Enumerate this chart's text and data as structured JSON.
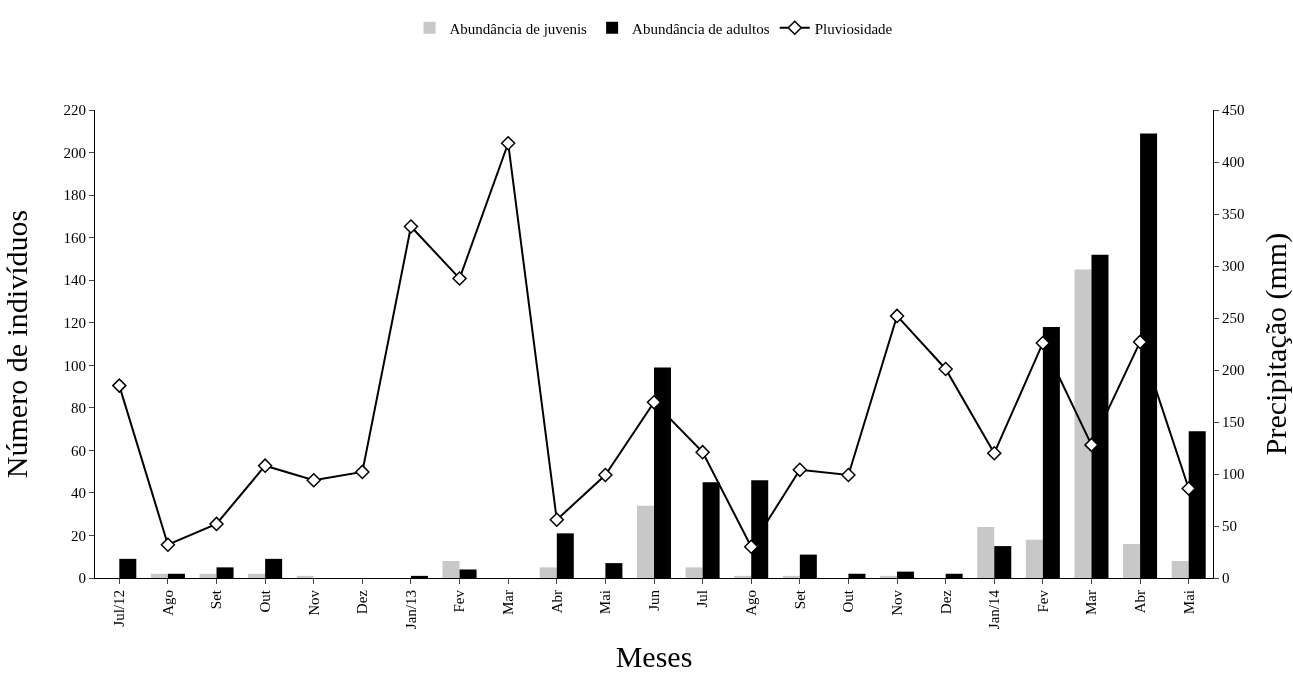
{
  "chart_data": {
    "type": "bar",
    "xlabel": "Meses",
    "ylabel": "Número de indivíduos",
    "y2label": "Precipitação (mm)",
    "categories": [
      "Jul/12",
      "Ago",
      "Set",
      "Out",
      "Nov",
      "Dez",
      "Jan/13",
      "Fev",
      "Mar",
      "Abr",
      "Mai",
      "Jun",
      "Jul",
      "Ago",
      "Set",
      "Out",
      "Nov",
      "Dez",
      "Jan/14",
      "Fev",
      "Mar",
      "Abr",
      "Mai"
    ],
    "series": [
      {
        "name": "Abundância de juvenis",
        "color": "#c8c8c8",
        "values": [
          0,
          2,
          2,
          2,
          1,
          0,
          0,
          8,
          0,
          5,
          0,
          34,
          5,
          1,
          1,
          0,
          1,
          0,
          24,
          18,
          145,
          16,
          8
        ]
      },
      {
        "name": "Abundância de adultos",
        "color": "#000000",
        "values": [
          9,
          2,
          5,
          9,
          0,
          0,
          1,
          4,
          0,
          21,
          7,
          99,
          45,
          46,
          11,
          2,
          3,
          2,
          15,
          118,
          152,
          209,
          69
        ]
      },
      {
        "name": "Pluviosidade",
        "color": "#000000",
        "type": "line",
        "axis": "y2",
        "marker": "diamond",
        "values": [
          185,
          32,
          52,
          108,
          94,
          102,
          338,
          288,
          418,
          56,
          99,
          169,
          121,
          30,
          104,
          99,
          252,
          201,
          120,
          226,
          128,
          227,
          86
        ]
      }
    ],
    "ylim": [
      0,
      220
    ],
    "yticks": [
      0,
      20,
      40,
      60,
      80,
      100,
      120,
      140,
      160,
      180,
      200,
      220
    ],
    "y2lim": [
      0,
      450
    ],
    "y2ticks": [
      0,
      50,
      100,
      150,
      200,
      250,
      300,
      350,
      400,
      450
    ],
    "grid": false,
    "legend": "top"
  }
}
